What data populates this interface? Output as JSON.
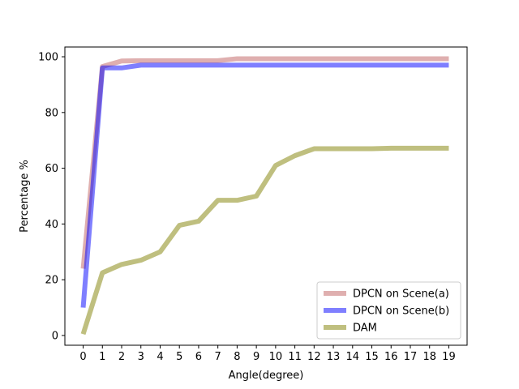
{
  "chart_data": {
    "type": "line",
    "title": "",
    "xlabel": "Angle(degree)",
    "ylabel": "Percentage %",
    "x": [
      0,
      1,
      2,
      3,
      4,
      5,
      6,
      7,
      8,
      9,
      10,
      11,
      12,
      13,
      14,
      15,
      16,
      17,
      18,
      19
    ],
    "xlim": [
      -0.95,
      19.95
    ],
    "ylim": [
      -3.5,
      103.5
    ],
    "xticks": [
      "0",
      "1",
      "2",
      "3",
      "4",
      "5",
      "6",
      "7",
      "8",
      "9",
      "10",
      "11",
      "12",
      "13",
      "14",
      "15",
      "16",
      "17",
      "18",
      "19"
    ],
    "yticks": [
      0,
      20,
      40,
      60,
      80,
      100
    ],
    "ytick_labels": [
      "0",
      "20",
      "40",
      "60",
      "80",
      "100"
    ],
    "grid": false,
    "legend_position": "lower-right",
    "series": [
      {
        "name": "DPCN on Scene(a)",
        "color": "#c06060",
        "values": [
          24,
          96.5,
          98.5,
          98.6,
          98.6,
          98.6,
          98.6,
          98.6,
          99.3,
          99.3,
          99.3,
          99.3,
          99.3,
          99.3,
          99.3,
          99.3,
          99.3,
          99.3,
          99.3,
          99.3
        ]
      },
      {
        "name": "DPCN on Scene(b)",
        "color": "#0000ff",
        "values": [
          10,
          96,
          96,
          97,
          97,
          97,
          97,
          97,
          97,
          97,
          97,
          97,
          97,
          97,
          97,
          97,
          97,
          97,
          97,
          97
        ]
      },
      {
        "name": "DAM",
        "color": "#808000",
        "values": [
          0.5,
          22.5,
          25.5,
          27,
          30,
          39.5,
          41,
          48.5,
          48.5,
          50,
          61,
          64.5,
          67,
          67,
          67,
          67,
          67.2,
          67.2,
          67.2,
          67.2
        ]
      }
    ]
  }
}
